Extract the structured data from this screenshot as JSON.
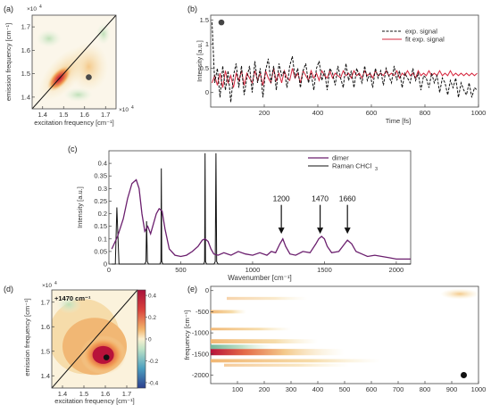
{
  "panels": {
    "a": {
      "tag": "(a)",
      "exponent": "×10",
      "exponent_power": "4",
      "xlabel": "excitation frequency [cm⁻¹]",
      "ylabel": "emission frequency [cm⁻¹]",
      "xticks": [
        "1.4",
        "1.5",
        "1.6",
        "1.7"
      ],
      "yticks": [
        "1.7",
        "1.6",
        "1.5",
        "1.4"
      ]
    },
    "b": {
      "tag": "(b)",
      "xlabel": "Time [fs]",
      "ylabel": "Intensity [a.u.]",
      "xticks": [
        "200",
        "400",
        "600",
        "800",
        "1000"
      ],
      "yticks": [
        "1.5",
        "1",
        "0.5",
        "0"
      ],
      "legend": [
        "exp. signal",
        "fit exp. signal"
      ]
    },
    "c": {
      "tag": "(c)",
      "xlabel": "Wavenumber [cm⁻¹]",
      "ylabel": "Intensity [a.u.]",
      "xticks": [
        "0",
        "500",
        "1000",
        "1500",
        "2000"
      ],
      "yticks": [
        "0.4",
        "0.35",
        "0.3",
        "0.25",
        "0.2",
        "0.15",
        "0.1",
        "0.05",
        "0"
      ],
      "legend": [
        "dimer",
        "Raman CHCl",
        "3"
      ],
      "annotations": [
        "1200",
        "1470",
        "1660"
      ]
    },
    "d": {
      "tag": "(d)",
      "exponent": "×10",
      "exponent_power": "4",
      "inset": "+1470 cm⁻¹",
      "xlabel": "excitation frequency [cm⁻¹]",
      "ylabel": "emission frequency [cm⁻¹]",
      "xticks": [
        "1.4",
        "1.5",
        "1.6",
        "1.7"
      ],
      "yticks": [
        "1.7",
        "1.6",
        "1.5",
        "1.4"
      ],
      "colorbar": [
        "0.4",
        "0.2",
        "0",
        "-0.2",
        "-0.4"
      ],
      "colorbar_exp": "×10",
      "colorbar_exp_power": "4"
    },
    "e": {
      "tag": "(e)",
      "ylabel": "frequency [cm⁻¹]",
      "xticks": [
        "100",
        "200",
        "300",
        "400",
        "500",
        "600",
        "700",
        "800",
        "900",
        "1000"
      ],
      "yticks": [
        "-2000",
        "-1500",
        "-1000",
        "-500",
        "0"
      ]
    }
  },
  "colors": {
    "dimer": "#6b1f6e",
    "raman": "#111111",
    "exp": "#111111",
    "fit": "#d6283f",
    "map_peak": "#c51b3a",
    "map_low": "#f7e6b5"
  },
  "chart_data": [
    {
      "panel": "a",
      "type": "heatmap",
      "xlabel": "excitation frequency [cm⁻¹]",
      "ylabel": "emission frequency [cm⁻¹]",
      "xlim": [
        13500,
        17500
      ],
      "ylim": [
        13500,
        17500
      ],
      "diagonal": true,
      "marker": [
        16200,
        14850
      ],
      "peak": [
        14800,
        14800
      ]
    },
    {
      "panel": "b",
      "type": "line",
      "xlabel": "Time [fs]",
      "ylabel": "Intensity [a.u.]",
      "xlim": [
        0,
        1000
      ],
      "ylim": [
        -0.3,
        1.6
      ],
      "series": [
        {
          "name": "exp. signal",
          "x": [
            5,
            15,
            25,
            35,
            45,
            55,
            65,
            75,
            85,
            95,
            105,
            115,
            125,
            135,
            145,
            155,
            165,
            175,
            185,
            195,
            205,
            215,
            225,
            235,
            245,
            255,
            265,
            275,
            285,
            295,
            305,
            315,
            325,
            335,
            345,
            355,
            365,
            375,
            385,
            395,
            405,
            415,
            425,
            435,
            445,
            455,
            465,
            475,
            485,
            495,
            505,
            515,
            525,
            535,
            545,
            555,
            565,
            575,
            585,
            595,
            605,
            615,
            625,
            635,
            645,
            655,
            665,
            675,
            685,
            695,
            705,
            715,
            725,
            735,
            745,
            755,
            765,
            775,
            785,
            795,
            805,
            815,
            825,
            835,
            845,
            855,
            865,
            875,
            885,
            895,
            905,
            915,
            925,
            935,
            945,
            955,
            965,
            975,
            985,
            995
          ],
          "y": [
            1.45,
            0.2,
            0.5,
            -0.1,
            0.55,
            0.05,
            0.45,
            -0.2,
            0.35,
            0.6,
            0.1,
            0.55,
            -0.05,
            0.3,
            0.55,
            0.0,
            0.65,
            0.2,
            0.5,
            -0.1,
            0.45,
            0.7,
            0.2,
            0.55,
            0.05,
            0.6,
            0.35,
            0.45,
            0.1,
            0.55,
            0.75,
            0.3,
            0.5,
            0.1,
            0.45,
            0.6,
            0.2,
            0.4,
            0.05,
            0.5,
            0.65,
            0.25,
            0.45,
            0.05,
            0.5,
            0.4,
            0.15,
            0.55,
            0.3,
            0.1,
            0.6,
            0.25,
            0.45,
            0.1,
            0.5,
            0.35,
            0.2,
            0.55,
            0.25,
            0.4,
            0.1,
            0.5,
            0.3,
            0.45,
            0.15,
            0.5,
            0.35,
            0.2,
            0.55,
            0.25,
            0.45,
            0.1,
            0.4,
            0.3,
            0.2,
            0.5,
            0.25,
            0.4,
            0.05,
            0.35,
            0.3,
            0.1,
            0.4,
            0.2,
            0.35,
            0.0,
            0.3,
            0.2,
            -0.05,
            0.25,
            0.1,
            0.3,
            -0.1,
            0.2,
            0.05,
            -0.05,
            0.2,
            -0.1,
            0.1,
            0.05
          ]
        },
        {
          "name": "fit exp. signal",
          "x": [
            5,
            15,
            25,
            35,
            45,
            55,
            65,
            75,
            85,
            95,
            105,
            115,
            125,
            135,
            145,
            155,
            165,
            175,
            185,
            195,
            205,
            215,
            225,
            235,
            245,
            255,
            265,
            275,
            285,
            295,
            305,
            315,
            325,
            335,
            345,
            355,
            365,
            375,
            385,
            395,
            405,
            415,
            425,
            435,
            445,
            455,
            465,
            475,
            485,
            495,
            505,
            515,
            525,
            535,
            545,
            555,
            565,
            575,
            585,
            595,
            605,
            615,
            625,
            635,
            645,
            655,
            665,
            675,
            685,
            695,
            705,
            715,
            725,
            735,
            745,
            755,
            765,
            775,
            785,
            795,
            805,
            815,
            825,
            835,
            845,
            855,
            865,
            875,
            885,
            895,
            905,
            915,
            925,
            935,
            945,
            955,
            965,
            975,
            985,
            995
          ],
          "y": [
            0.2,
            0.35,
            0.15,
            0.4,
            0.1,
            0.45,
            0.2,
            0.35,
            0.1,
            0.4,
            0.25,
            0.45,
            0.15,
            0.4,
            0.3,
            0.2,
            0.45,
            0.25,
            0.4,
            0.15,
            0.45,
            0.3,
            0.2,
            0.5,
            0.25,
            0.4,
            0.2,
            0.45,
            0.3,
            0.25,
            0.5,
            0.3,
            0.4,
            0.2,
            0.45,
            0.35,
            0.25,
            0.45,
            0.3,
            0.4,
            0.25,
            0.45,
            0.35,
            0.3,
            0.45,
            0.3,
            0.4,
            0.35,
            0.3,
            0.45,
            0.35,
            0.4,
            0.3,
            0.45,
            0.35,
            0.4,
            0.3,
            0.45,
            0.35,
            0.4,
            0.3,
            0.45,
            0.35,
            0.4,
            0.35,
            0.45,
            0.35,
            0.4,
            0.35,
            0.45,
            0.3,
            0.4,
            0.35,
            0.45,
            0.35,
            0.4,
            0.3,
            0.45,
            0.35,
            0.4,
            0.35,
            0.45,
            0.35,
            0.4,
            0.35,
            0.45,
            0.35,
            0.4,
            0.35,
            0.45,
            0.35,
            0.4,
            0.35,
            0.4,
            0.35,
            0.4,
            0.35,
            0.4,
            0.35,
            0.4
          ]
        }
      ]
    },
    {
      "panel": "c",
      "type": "line",
      "xlabel": "Wavenumber [cm⁻¹]",
      "ylabel": "Intensity [a.u.]",
      "xlim": [
        0,
        2100
      ],
      "ylim": [
        0,
        0.45
      ],
      "series": [
        {
          "name": "dimer",
          "x": [
            20,
            60,
            100,
            130,
            160,
            190,
            210,
            230,
            250,
            270,
            290,
            310,
            330,
            350,
            370,
            390,
            420,
            460,
            500,
            540,
            580,
            620,
            650,
            670,
            690,
            710,
            730,
            760,
            800,
            850,
            900,
            950,
            1000,
            1050,
            1100,
            1130,
            1160,
            1190,
            1210,
            1230,
            1260,
            1300,
            1350,
            1400,
            1440,
            1460,
            1480,
            1500,
            1520,
            1550,
            1600,
            1640,
            1660,
            1690,
            1720,
            1760,
            1800,
            1850,
            1900,
            1950,
            2000,
            2050,
            2100
          ],
          "y": [
            0.06,
            0.11,
            0.18,
            0.26,
            0.32,
            0.335,
            0.3,
            0.2,
            0.13,
            0.15,
            0.12,
            0.16,
            0.2,
            0.22,
            0.21,
            0.14,
            0.06,
            0.035,
            0.03,
            0.035,
            0.05,
            0.07,
            0.095,
            0.1,
            0.09,
            0.06,
            0.04,
            0.035,
            0.045,
            0.035,
            0.05,
            0.04,
            0.035,
            0.045,
            0.035,
            0.05,
            0.045,
            0.08,
            0.1,
            0.07,
            0.04,
            0.035,
            0.05,
            0.045,
            0.08,
            0.1,
            0.11,
            0.1,
            0.07,
            0.045,
            0.05,
            0.08,
            0.095,
            0.08,
            0.05,
            0.04,
            0.03,
            0.035,
            0.03,
            0.025,
            0.02,
            0.02,
            0.02
          ]
        },
        {
          "name": "Raman CHCl3",
          "x": [
            20,
            45,
            55,
            70,
            90,
            250,
            258,
            262,
            268,
            275,
            355,
            362,
            365,
            368,
            375,
            660,
            666,
            669,
            672,
            680,
            732,
            740,
            745,
            750,
            760,
            2100
          ],
          "y": [
            0.0,
            0.0,
            0.225,
            0.0,
            0.0,
            0.0,
            0.01,
            0.17,
            0.01,
            0.0,
            0.0,
            0.01,
            0.38,
            0.01,
            0.0,
            0.0,
            0.01,
            0.44,
            0.01,
            0.0,
            0.0,
            0.01,
            0.44,
            0.01,
            0.0,
            0.0
          ]
        }
      ],
      "arrows": [
        1200,
        1470,
        1660
      ]
    },
    {
      "panel": "d",
      "type": "heatmap",
      "xlabel": "excitation frequency [cm⁻¹]",
      "ylabel": "emission frequency [cm⁻¹]",
      "xlim": [
        13500,
        17500
      ],
      "ylim": [
        13500,
        17500
      ],
      "colorbar_range": [
        -0.4,
        0.4
      ],
      "diagonal": true,
      "marker": [
        16050,
        14750
      ],
      "peak": [
        15900,
        14850
      ]
    },
    {
      "panel": "e",
      "type": "heatmap",
      "ylabel": "frequency [cm⁻¹]",
      "xlim": [
        0,
        1000
      ],
      "ylim": [
        -2200,
        100
      ],
      "marker": [
        945,
        -2000
      ],
      "bands": [
        -1470,
        -1200,
        -1660,
        -900,
        -500
      ]
    }
  ]
}
